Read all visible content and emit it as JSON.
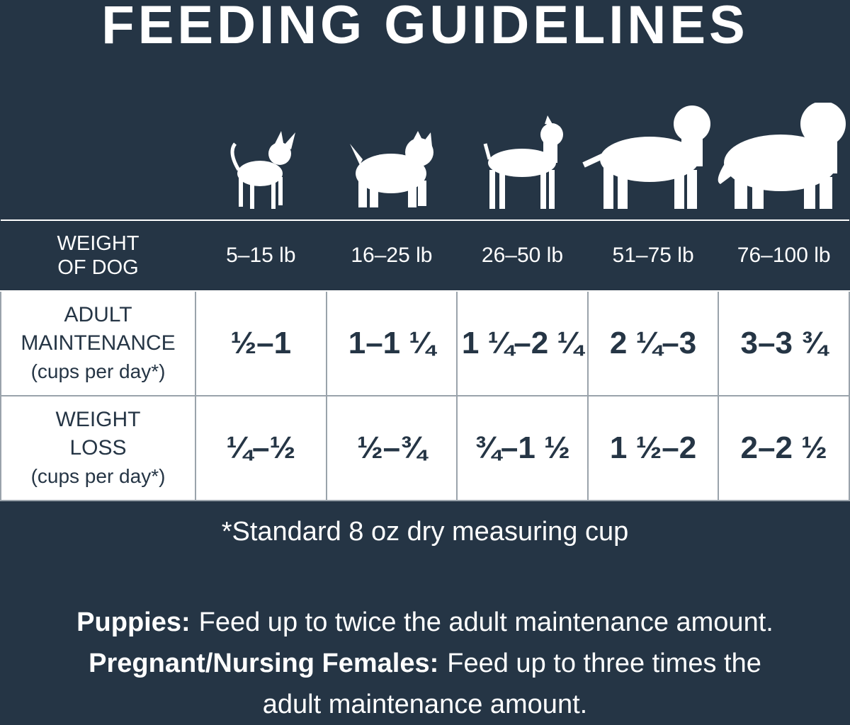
{
  "title": "FEEDING GUIDELINES",
  "table": {
    "header": {
      "label": [
        "WEIGHT",
        "OF DOG"
      ],
      "columns": [
        "5–15 lb",
        "16–25 lb",
        "26–50 lb",
        "51–75 lb",
        "76–100 lb"
      ]
    },
    "rows": [
      {
        "label": [
          "ADULT",
          "MAINTENANCE"
        ],
        "unit": "(cups per day*)",
        "cells": [
          "½–1",
          "1–1 ¼",
          "1 ¼–2 ¼",
          "2 ¼–3",
          "3–3 ¾"
        ]
      },
      {
        "label": [
          "WEIGHT",
          "LOSS"
        ],
        "unit": "(cups per day*)",
        "cells": [
          "¼–½",
          "½–¾",
          "¾–1 ½",
          "1 ½–2",
          "2–2 ½"
        ]
      }
    ]
  },
  "footnote": "*Standard 8 oz dry measuring cup",
  "notes": [
    {
      "label": "Puppies:",
      "text": "Feed up to twice the adult maintenance amount."
    },
    {
      "label": "Pregnant/Nursing Females:",
      "text": "Feed up to three times the adult maintenance amount."
    }
  ]
}
